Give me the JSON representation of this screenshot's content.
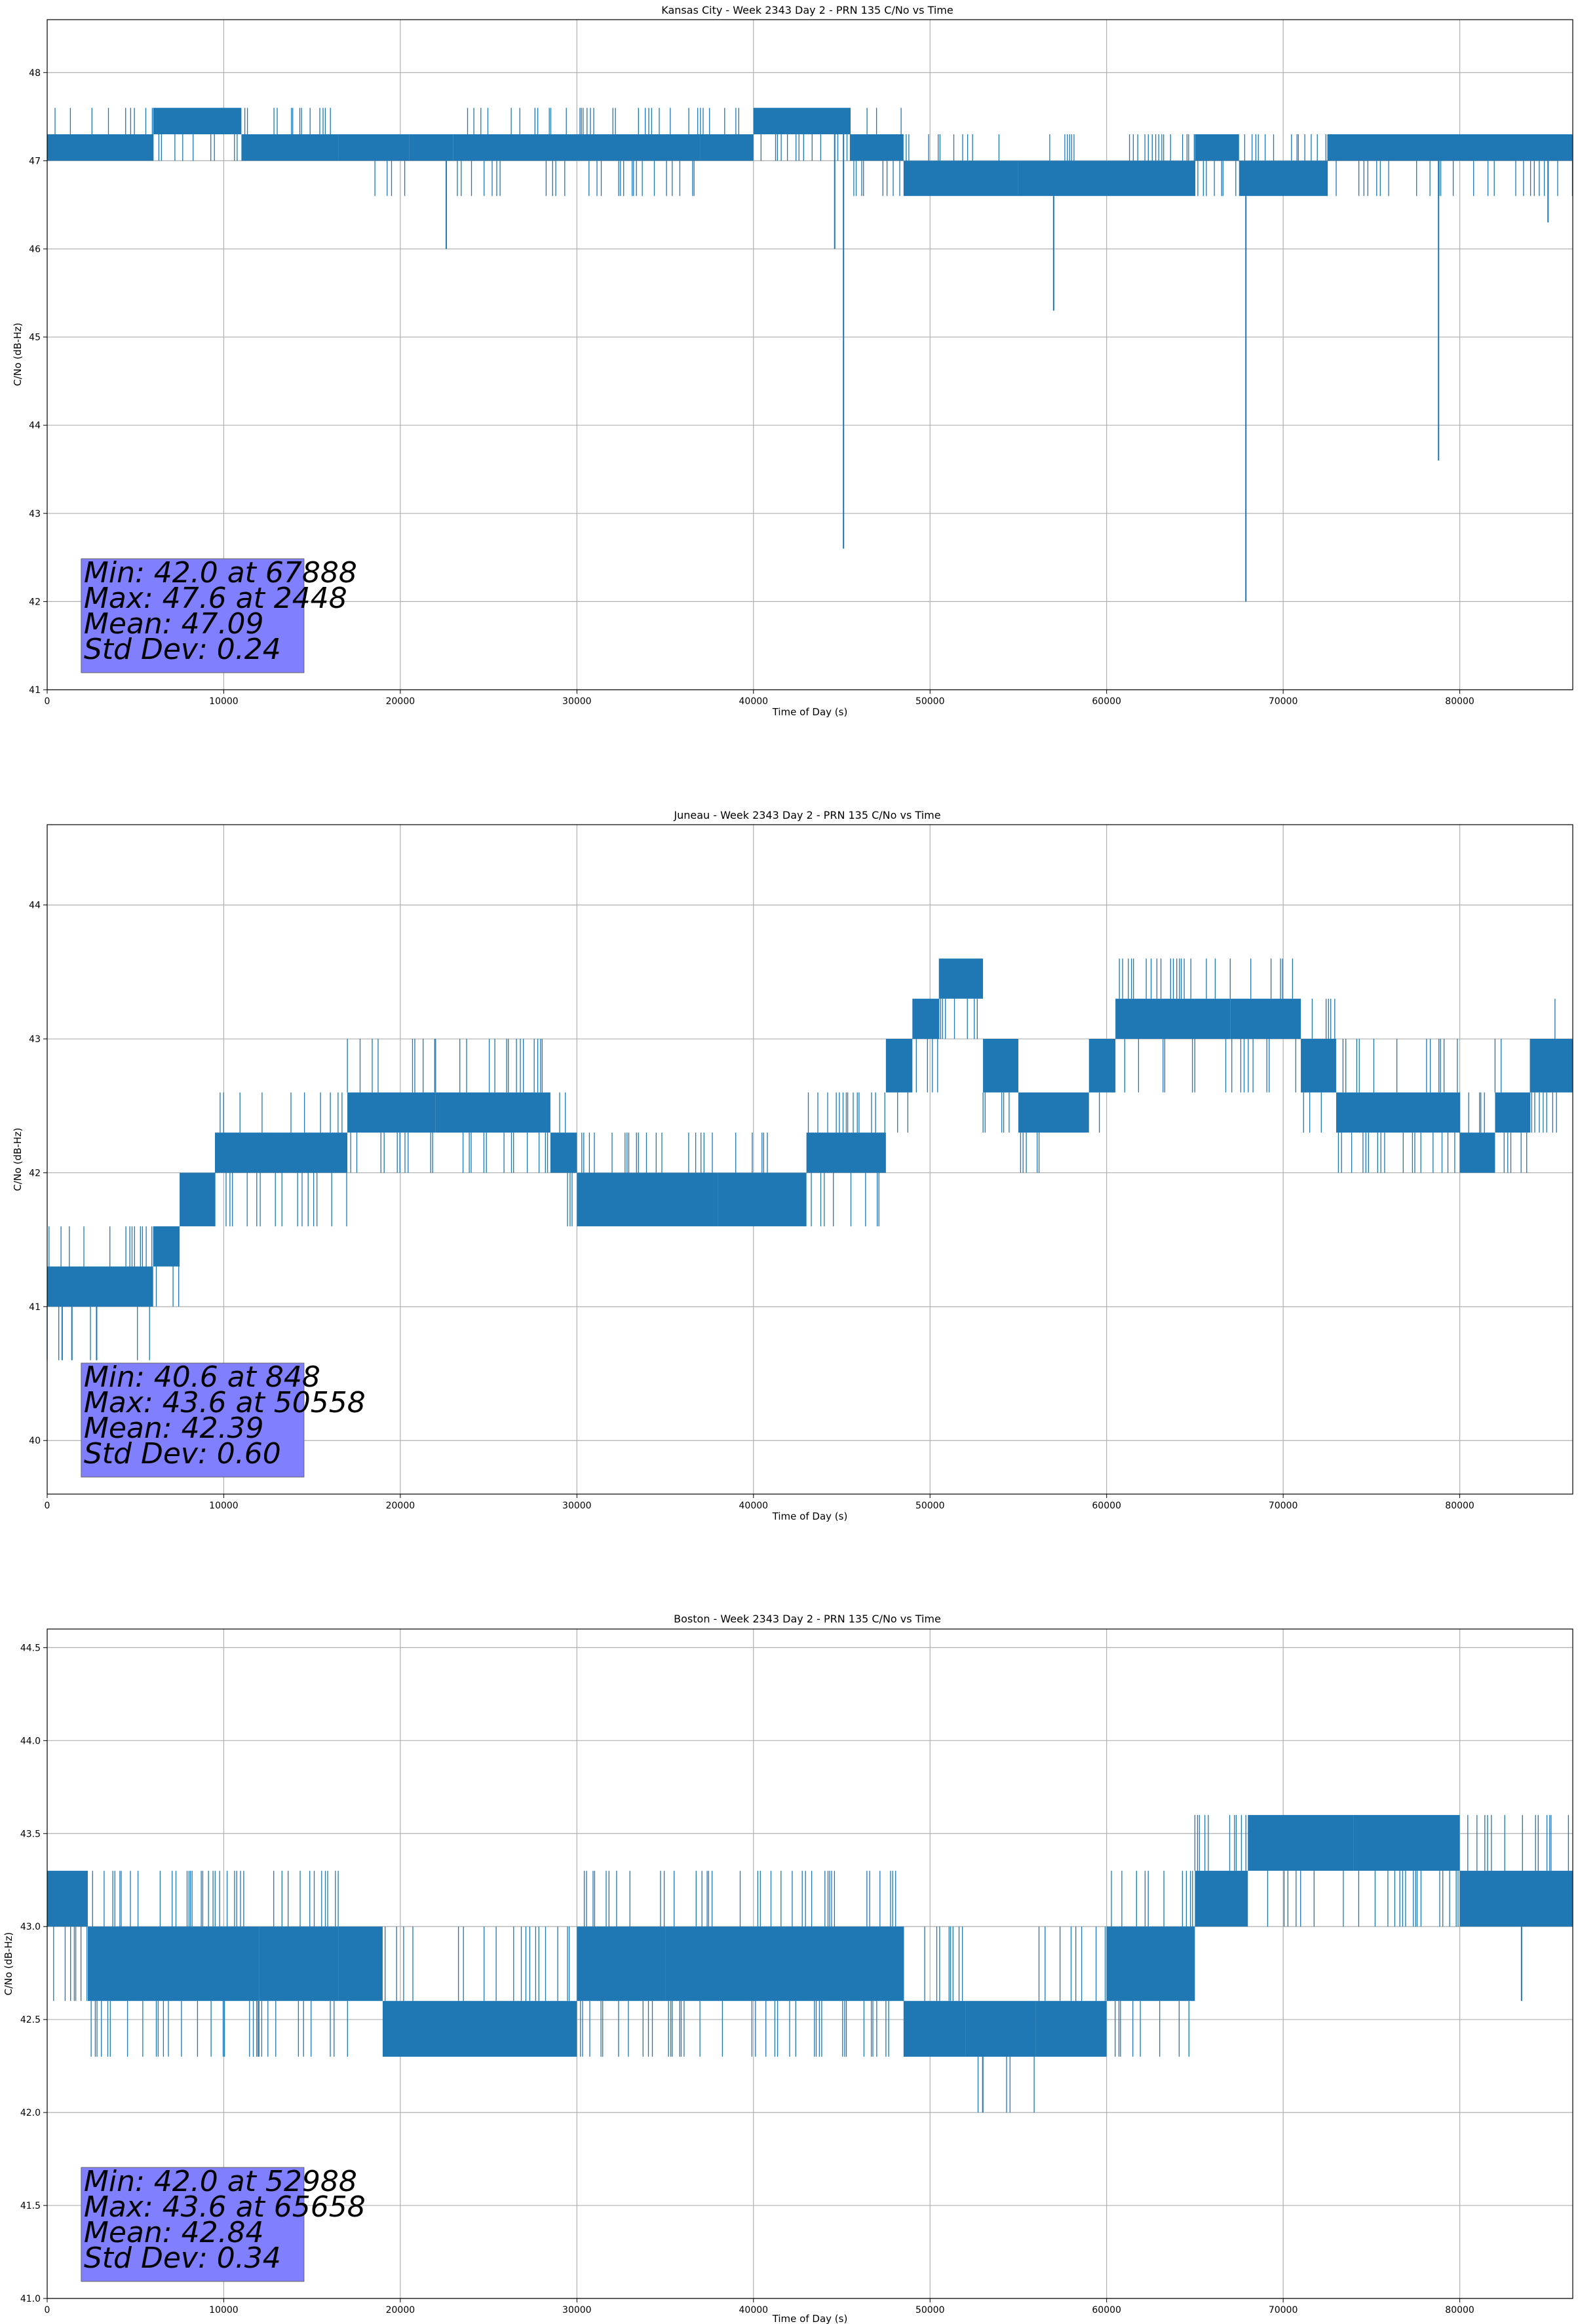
{
  "colors": {
    "series": "#1f77b4",
    "stats_box": "#8080ff",
    "grid": "#b0b0b0"
  },
  "chart_data": [
    {
      "type": "line",
      "title": "Kansas City - Week 2343 Day 2 - PRN 135 C/No vs Time",
      "xlabel": "Time of Day (s)",
      "ylabel": "C/No (dB-Hz)",
      "xlim": [
        0,
        86400
      ],
      "ylim": [
        41,
        48.6
      ],
      "xticks": [
        0,
        10000,
        20000,
        30000,
        40000,
        50000,
        60000,
        70000,
        80000
      ],
      "xtick_labels": [
        "0",
        "10000",
        "20000",
        "30000",
        "40000",
        "50000",
        "60000",
        "70000",
        "80000"
      ],
      "yticks": [
        41,
        42,
        43,
        44,
        45,
        46,
        47,
        48
      ],
      "ytick_labels": [
        "41",
        "42",
        "43",
        "44",
        "45",
        "46",
        "47",
        "48"
      ],
      "grid": true,
      "stats": [
        "Min: 42.0 at 67888",
        "Max: 47.6 at 2448",
        "Mean: 47.09",
        "Std Dev: 0.24"
      ],
      "stats_x": 2000,
      "bands": [
        {
          "x": [
            0,
            6000
          ],
          "low": 47.0,
          "high": 47.3,
          "up": 47.6,
          "down": 47.0
        },
        {
          "x": [
            6000,
            11000
          ],
          "low": 47.3,
          "high": 47.6,
          "up": 47.6,
          "down": 47.0
        },
        {
          "x": [
            11000,
            16500
          ],
          "low": 47.0,
          "high": 47.3,
          "up": 47.6,
          "down": 47.0
        },
        {
          "x": [
            16500,
            20500
          ],
          "low": 47.0,
          "high": 47.3,
          "up": 47.3,
          "down": 46.6
        },
        {
          "x": [
            20500,
            23000
          ],
          "low": 47.0,
          "high": 47.3,
          "up": 47.3,
          "down": 46.6
        },
        {
          "x": [
            23000,
            37000
          ],
          "low": 47.0,
          "high": 47.3,
          "up": 47.6,
          "down": 46.6
        },
        {
          "x": [
            37000,
            40000
          ],
          "low": 47.0,
          "high": 47.3,
          "up": 47.6,
          "down": 47.0
        },
        {
          "x": [
            40000,
            45500
          ],
          "low": 47.3,
          "high": 47.6,
          "up": 47.6,
          "down": 47.0
        },
        {
          "x": [
            45500,
            48500
          ],
          "low": 47.0,
          "high": 47.3,
          "up": 47.6,
          "down": 46.6
        },
        {
          "x": [
            48500,
            55000
          ],
          "low": 46.6,
          "high": 47.0,
          "up": 47.3,
          "down": 46.6
        },
        {
          "x": [
            55000,
            65000
          ],
          "low": 46.6,
          "high": 47.0,
          "up": 47.3,
          "down": 46.6
        },
        {
          "x": [
            65000,
            67500
          ],
          "low": 47.0,
          "high": 47.3,
          "up": 47.3,
          "down": 46.6
        },
        {
          "x": [
            67500,
            72500
          ],
          "low": 46.6,
          "high": 47.0,
          "up": 47.3,
          "down": 46.6
        },
        {
          "x": [
            72500,
            86400
          ],
          "low": 47.0,
          "high": 47.3,
          "up": 47.3,
          "down": 46.6
        }
      ],
      "spikes": [
        {
          "x": 22600,
          "y": 46.0
        },
        {
          "x": 44600,
          "y": 46.0
        },
        {
          "x": 45100,
          "y": 42.6
        },
        {
          "x": 57000,
          "y": 45.3
        },
        {
          "x": 67888,
          "y": 42.0
        },
        {
          "x": 78800,
          "y": 43.6
        },
        {
          "x": 85000,
          "y": 46.3
        }
      ]
    },
    {
      "type": "line",
      "title": "Juneau - Week 2343 Day 2 - PRN 135 C/No vs Time",
      "xlabel": "Time of Day (s)",
      "ylabel": "C/No (dB-Hz)",
      "xlim": [
        0,
        86400
      ],
      "ylim": [
        39.6,
        44.6
      ],
      "xticks": [
        0,
        10000,
        20000,
        30000,
        40000,
        50000,
        60000,
        70000,
        80000
      ],
      "xtick_labels": [
        "0",
        "10000",
        "20000",
        "30000",
        "40000",
        "50000",
        "60000",
        "70000",
        "80000"
      ],
      "yticks": [
        40,
        41,
        42,
        43,
        44
      ],
      "ytick_labels": [
        "40",
        "41",
        "42",
        "43",
        "44"
      ],
      "grid": true,
      "stats": [
        "Min: 40.6 at 848",
        "Max: 43.6 at 50558",
        "Mean: 42.39",
        "Std Dev: 0.60"
      ],
      "stats_x": 2000,
      "bands": [
        {
          "x": [
            0,
            6000
          ],
          "low": 41.0,
          "high": 41.3,
          "up": 41.6,
          "down": 40.6
        },
        {
          "x": [
            6000,
            7500
          ],
          "low": 41.3,
          "high": 41.6,
          "up": 41.6,
          "down": 41.0
        },
        {
          "x": [
            7500,
            9500
          ],
          "low": 41.6,
          "high": 42.0,
          "up": 42.0,
          "down": 41.6
        },
        {
          "x": [
            9500,
            17000
          ],
          "low": 42.0,
          "high": 42.3,
          "up": 42.6,
          "down": 41.6
        },
        {
          "x": [
            17000,
            22000
          ],
          "low": 42.3,
          "high": 42.6,
          "up": 43.0,
          "down": 42.0
        },
        {
          "x": [
            22000,
            28500
          ],
          "low": 42.3,
          "high": 42.6,
          "up": 43.0,
          "down": 42.0
        },
        {
          "x": [
            28500,
            30000
          ],
          "low": 42.0,
          "high": 42.3,
          "up": 42.6,
          "down": 41.6
        },
        {
          "x": [
            30000,
            38000
          ],
          "low": 41.6,
          "high": 42.0,
          "up": 42.3,
          "down": 41.6
        },
        {
          "x": [
            38000,
            43000
          ],
          "low": 41.6,
          "high": 42.0,
          "up": 42.3,
          "down": 41.6
        },
        {
          "x": [
            43000,
            47500
          ],
          "low": 42.0,
          "high": 42.3,
          "up": 42.6,
          "down": 41.6
        },
        {
          "x": [
            47500,
            49000
          ],
          "low": 42.6,
          "high": 43.0,
          "up": 43.0,
          "down": 42.3
        },
        {
          "x": [
            49000,
            50500
          ],
          "low": 43.0,
          "high": 43.3,
          "up": 43.3,
          "down": 42.6
        },
        {
          "x": [
            50500,
            53000
          ],
          "low": 43.3,
          "high": 43.6,
          "up": 43.6,
          "down": 43.0
        },
        {
          "x": [
            53000,
            55000
          ],
          "low": 42.6,
          "high": 43.0,
          "up": 43.0,
          "down": 42.3
        },
        {
          "x": [
            55000,
            59000
          ],
          "low": 42.3,
          "high": 42.6,
          "up": 42.6,
          "down": 42.0
        },
        {
          "x": [
            59000,
            60500
          ],
          "low": 42.6,
          "high": 43.0,
          "up": 43.0,
          "down": 42.3
        },
        {
          "x": [
            60500,
            67000
          ],
          "low": 43.0,
          "high": 43.3,
          "up": 43.6,
          "down": 42.6
        },
        {
          "x": [
            67000,
            71000
          ],
          "low": 43.0,
          "high": 43.3,
          "up": 43.6,
          "down": 42.6
        },
        {
          "x": [
            71000,
            73000
          ],
          "low": 42.6,
          "high": 43.0,
          "up": 43.3,
          "down": 42.3
        },
        {
          "x": [
            73000,
            80000
          ],
          "low": 42.3,
          "high": 42.6,
          "up": 43.0,
          "down": 42.0
        },
        {
          "x": [
            80000,
            82000
          ],
          "low": 42.0,
          "high": 42.3,
          "up": 42.6,
          "down": 42.0
        },
        {
          "x": [
            82000,
            84000
          ],
          "low": 42.3,
          "high": 42.6,
          "up": 43.0,
          "down": 42.0
        },
        {
          "x": [
            84000,
            86400
          ],
          "low": 42.6,
          "high": 43.0,
          "up": 43.3,
          "down": 42.3
        }
      ],
      "spikes": [
        {
          "x": 848,
          "y": 40.6
        },
        {
          "x": 1400,
          "y": 40.6
        },
        {
          "x": 2800,
          "y": 40.6
        }
      ]
    },
    {
      "type": "line",
      "title": "Boston - Week 2343 Day 2 - PRN 135 C/No vs Time",
      "xlabel": "Time of Day (s)",
      "ylabel": "C/No (dB-Hz)",
      "xlim": [
        0,
        86400
      ],
      "ylim": [
        41.0,
        44.6
      ],
      "xticks": [
        0,
        10000,
        20000,
        30000,
        40000,
        50000,
        60000,
        70000,
        80000
      ],
      "xtick_labels": [
        "0",
        "10000",
        "20000",
        "30000",
        "40000",
        "50000",
        "60000",
        "70000",
        "80000"
      ],
      "yticks": [
        41.0,
        41.5,
        42.0,
        42.5,
        43.0,
        43.5,
        44.0,
        44.5
      ],
      "ytick_labels": [
        "41.0",
        "41.5",
        "42.0",
        "42.5",
        "43.0",
        "43.5",
        "44.0",
        "44.5"
      ],
      "grid": true,
      "stats": [
        "Min: 42.0 at 52988",
        "Max: 43.6 at 65658",
        "Mean: 42.84",
        "Std Dev: 0.34"
      ],
      "stats_x": 2000,
      "bands": [
        {
          "x": [
            0,
            2300
          ],
          "low": 43.0,
          "high": 43.3,
          "up": 43.3,
          "down": 42.6
        },
        {
          "x": [
            2300,
            12000
          ],
          "low": 42.6,
          "high": 43.0,
          "up": 43.3,
          "down": 42.3
        },
        {
          "x": [
            12000,
            16500
          ],
          "low": 42.6,
          "high": 43.0,
          "up": 43.3,
          "down": 42.3
        },
        {
          "x": [
            16500,
            19000
          ],
          "low": 42.6,
          "high": 43.0,
          "up": 43.0,
          "down": 42.3
        },
        {
          "x": [
            19000,
            30000
          ],
          "low": 42.3,
          "high": 42.6,
          "up": 43.0,
          "down": 42.3
        },
        {
          "x": [
            30000,
            35000
          ],
          "low": 42.6,
          "high": 43.0,
          "up": 43.3,
          "down": 42.3
        },
        {
          "x": [
            35000,
            48500
          ],
          "low": 42.6,
          "high": 43.0,
          "up": 43.3,
          "down": 42.3
        },
        {
          "x": [
            48500,
            52000
          ],
          "low": 42.3,
          "high": 42.6,
          "up": 43.0,
          "down": 42.3
        },
        {
          "x": [
            52000,
            56000
          ],
          "low": 42.3,
          "high": 42.6,
          "up": 42.6,
          "down": 42.0
        },
        {
          "x": [
            56000,
            60000
          ],
          "low": 42.3,
          "high": 42.6,
          "up": 43.0,
          "down": 42.3
        },
        {
          "x": [
            60000,
            65000
          ],
          "low": 42.6,
          "high": 43.0,
          "up": 43.3,
          "down": 42.3
        },
        {
          "x": [
            65000,
            68000
          ],
          "low": 43.0,
          "high": 43.3,
          "up": 43.6,
          "down": 43.0
        },
        {
          "x": [
            68000,
            74000
          ],
          "low": 43.3,
          "high": 43.6,
          "up": 43.6,
          "down": 43.0
        },
        {
          "x": [
            74000,
            80000
          ],
          "low": 43.3,
          "high": 43.6,
          "up": 43.6,
          "down": 43.0
        },
        {
          "x": [
            80000,
            86400
          ],
          "low": 43.0,
          "high": 43.3,
          "up": 43.6,
          "down": 43.0
        }
      ],
      "spikes": [
        {
          "x": 52988,
          "y": 42.0
        },
        {
          "x": 83500,
          "y": 42.6
        }
      ]
    }
  ]
}
